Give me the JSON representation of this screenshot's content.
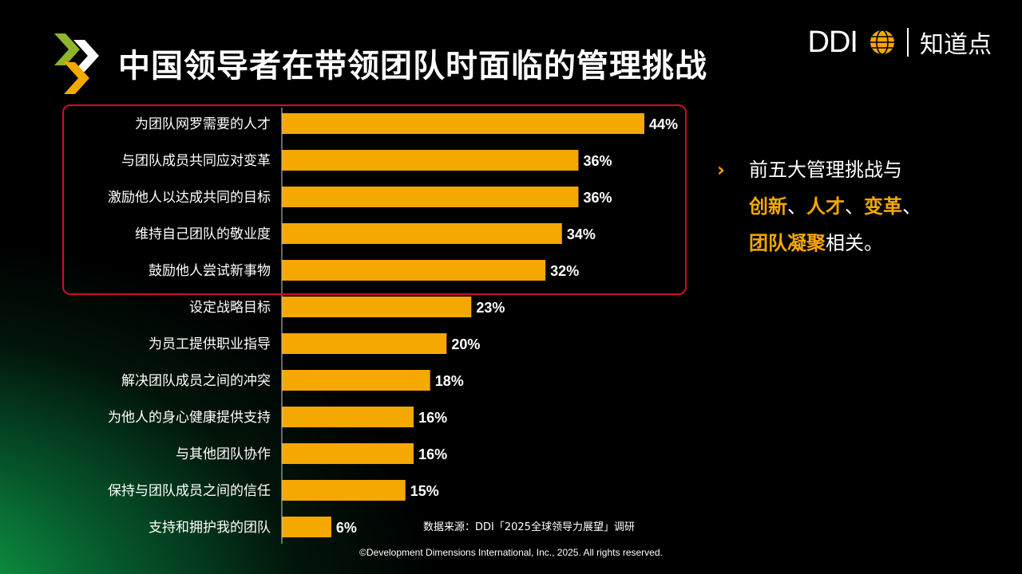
{
  "title": "中国领导者在带领团队时面临的管理挑战",
  "brand": {
    "ddi": "DDI",
    "zhidaodian": "知道点"
  },
  "chart_data": {
    "type": "bar",
    "orientation": "horizontal",
    "categories": [
      "为团队网罗需要的人才",
      "与团队成员共同应对变革",
      "激励他人以达成共同的目标",
      "维持自己团队的敬业度",
      "鼓励他人尝试新事物",
      "设定战略目标",
      "为员工提供职业指导",
      "解决团队成员之间的冲突",
      "为他人的身心健康提供支持",
      "与其他团队协作",
      "保持与团队成员之间的信任",
      "支持和拥护我的团队"
    ],
    "values": [
      44,
      36,
      36,
      34,
      32,
      23,
      20,
      18,
      16,
      16,
      15,
      6
    ],
    "value_labels": [
      "44%",
      "36%",
      "36%",
      "34%",
      "32%",
      "23%",
      "20%",
      "18%",
      "16%",
      "16%",
      "15%",
      "6%"
    ],
    "unit": "%",
    "bar_color": "#f5a800",
    "highlight_color": "#c8102e",
    "highlight_top_n": 5
  },
  "bullet": {
    "line1": "前五大管理挑战与",
    "h1": "创新",
    "s1": "、",
    "h2": "人才",
    "s2": "、",
    "h3": "变革",
    "s3": "、",
    "h4": "团队凝聚",
    "tail": "相关。"
  },
  "source": "数据来源：DDI「2025全球领导力展望」调研",
  "copyright": "©Development Dimensions International, Inc., 2025. All rights reserved."
}
